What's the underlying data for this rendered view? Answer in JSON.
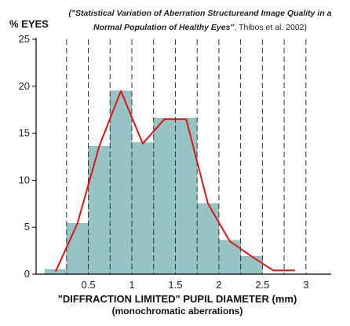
{
  "chart_data": {
    "type": "bar",
    "caption_line1": "(\"Statistical Variation of Aberration Structureand Image Quality in a",
    "caption_line2_italic": "Normal Population of Healthy Eyes\"",
    "caption_line2_rest": ", Thibos et al. 2002)",
    "ylabel": "% EYES",
    "xlabel": "\"DIFFRACTION LIMITED\" PUPIL DIAMETER (mm)",
    "xlabel_sub": "(monochromatic aberrations)",
    "ylim": [
      0,
      25
    ],
    "xlim": [
      -0.1,
      3.2
    ],
    "yticks": [
      "0",
      "5",
      "10",
      "15",
      "20",
      "25"
    ],
    "xticks": [
      "0.5",
      "1",
      "1.5",
      "2",
      "2.5",
      "3"
    ],
    "grid_x": [
      0.25,
      0.5,
      0.75,
      1.0,
      1.25,
      1.5,
      1.75,
      2.0,
      2.25,
      2.5,
      2.75,
      3.0
    ],
    "bar_width": 0.25,
    "bars": {
      "x": [
        0.125,
        0.375,
        0.625,
        0.875,
        1.125,
        1.375,
        1.625,
        1.875,
        2.125,
        2.375,
        2.625,
        2.875
      ],
      "values": [
        0.5,
        5.4,
        13.6,
        19.5,
        14.0,
        16.6,
        16.6,
        7.5,
        3.6,
        1.9,
        0,
        0
      ]
    },
    "series": [
      {
        "type": "line",
        "x": [
          0.125,
          0.375,
          0.625,
          0.875,
          1.125,
          1.375,
          1.625,
          1.875,
          2.125,
          2.375,
          2.625,
          2.875
        ],
        "values": [
          0.3,
          5.4,
          13.6,
          19.5,
          13.9,
          16.5,
          16.5,
          7.5,
          3.5,
          1.9,
          0.4,
          0.4
        ]
      }
    ],
    "colors": {
      "bar": "#96c3c3",
      "bar_edge": "#7fb0b0",
      "line": "#e01414",
      "grid": "#333333"
    }
  }
}
